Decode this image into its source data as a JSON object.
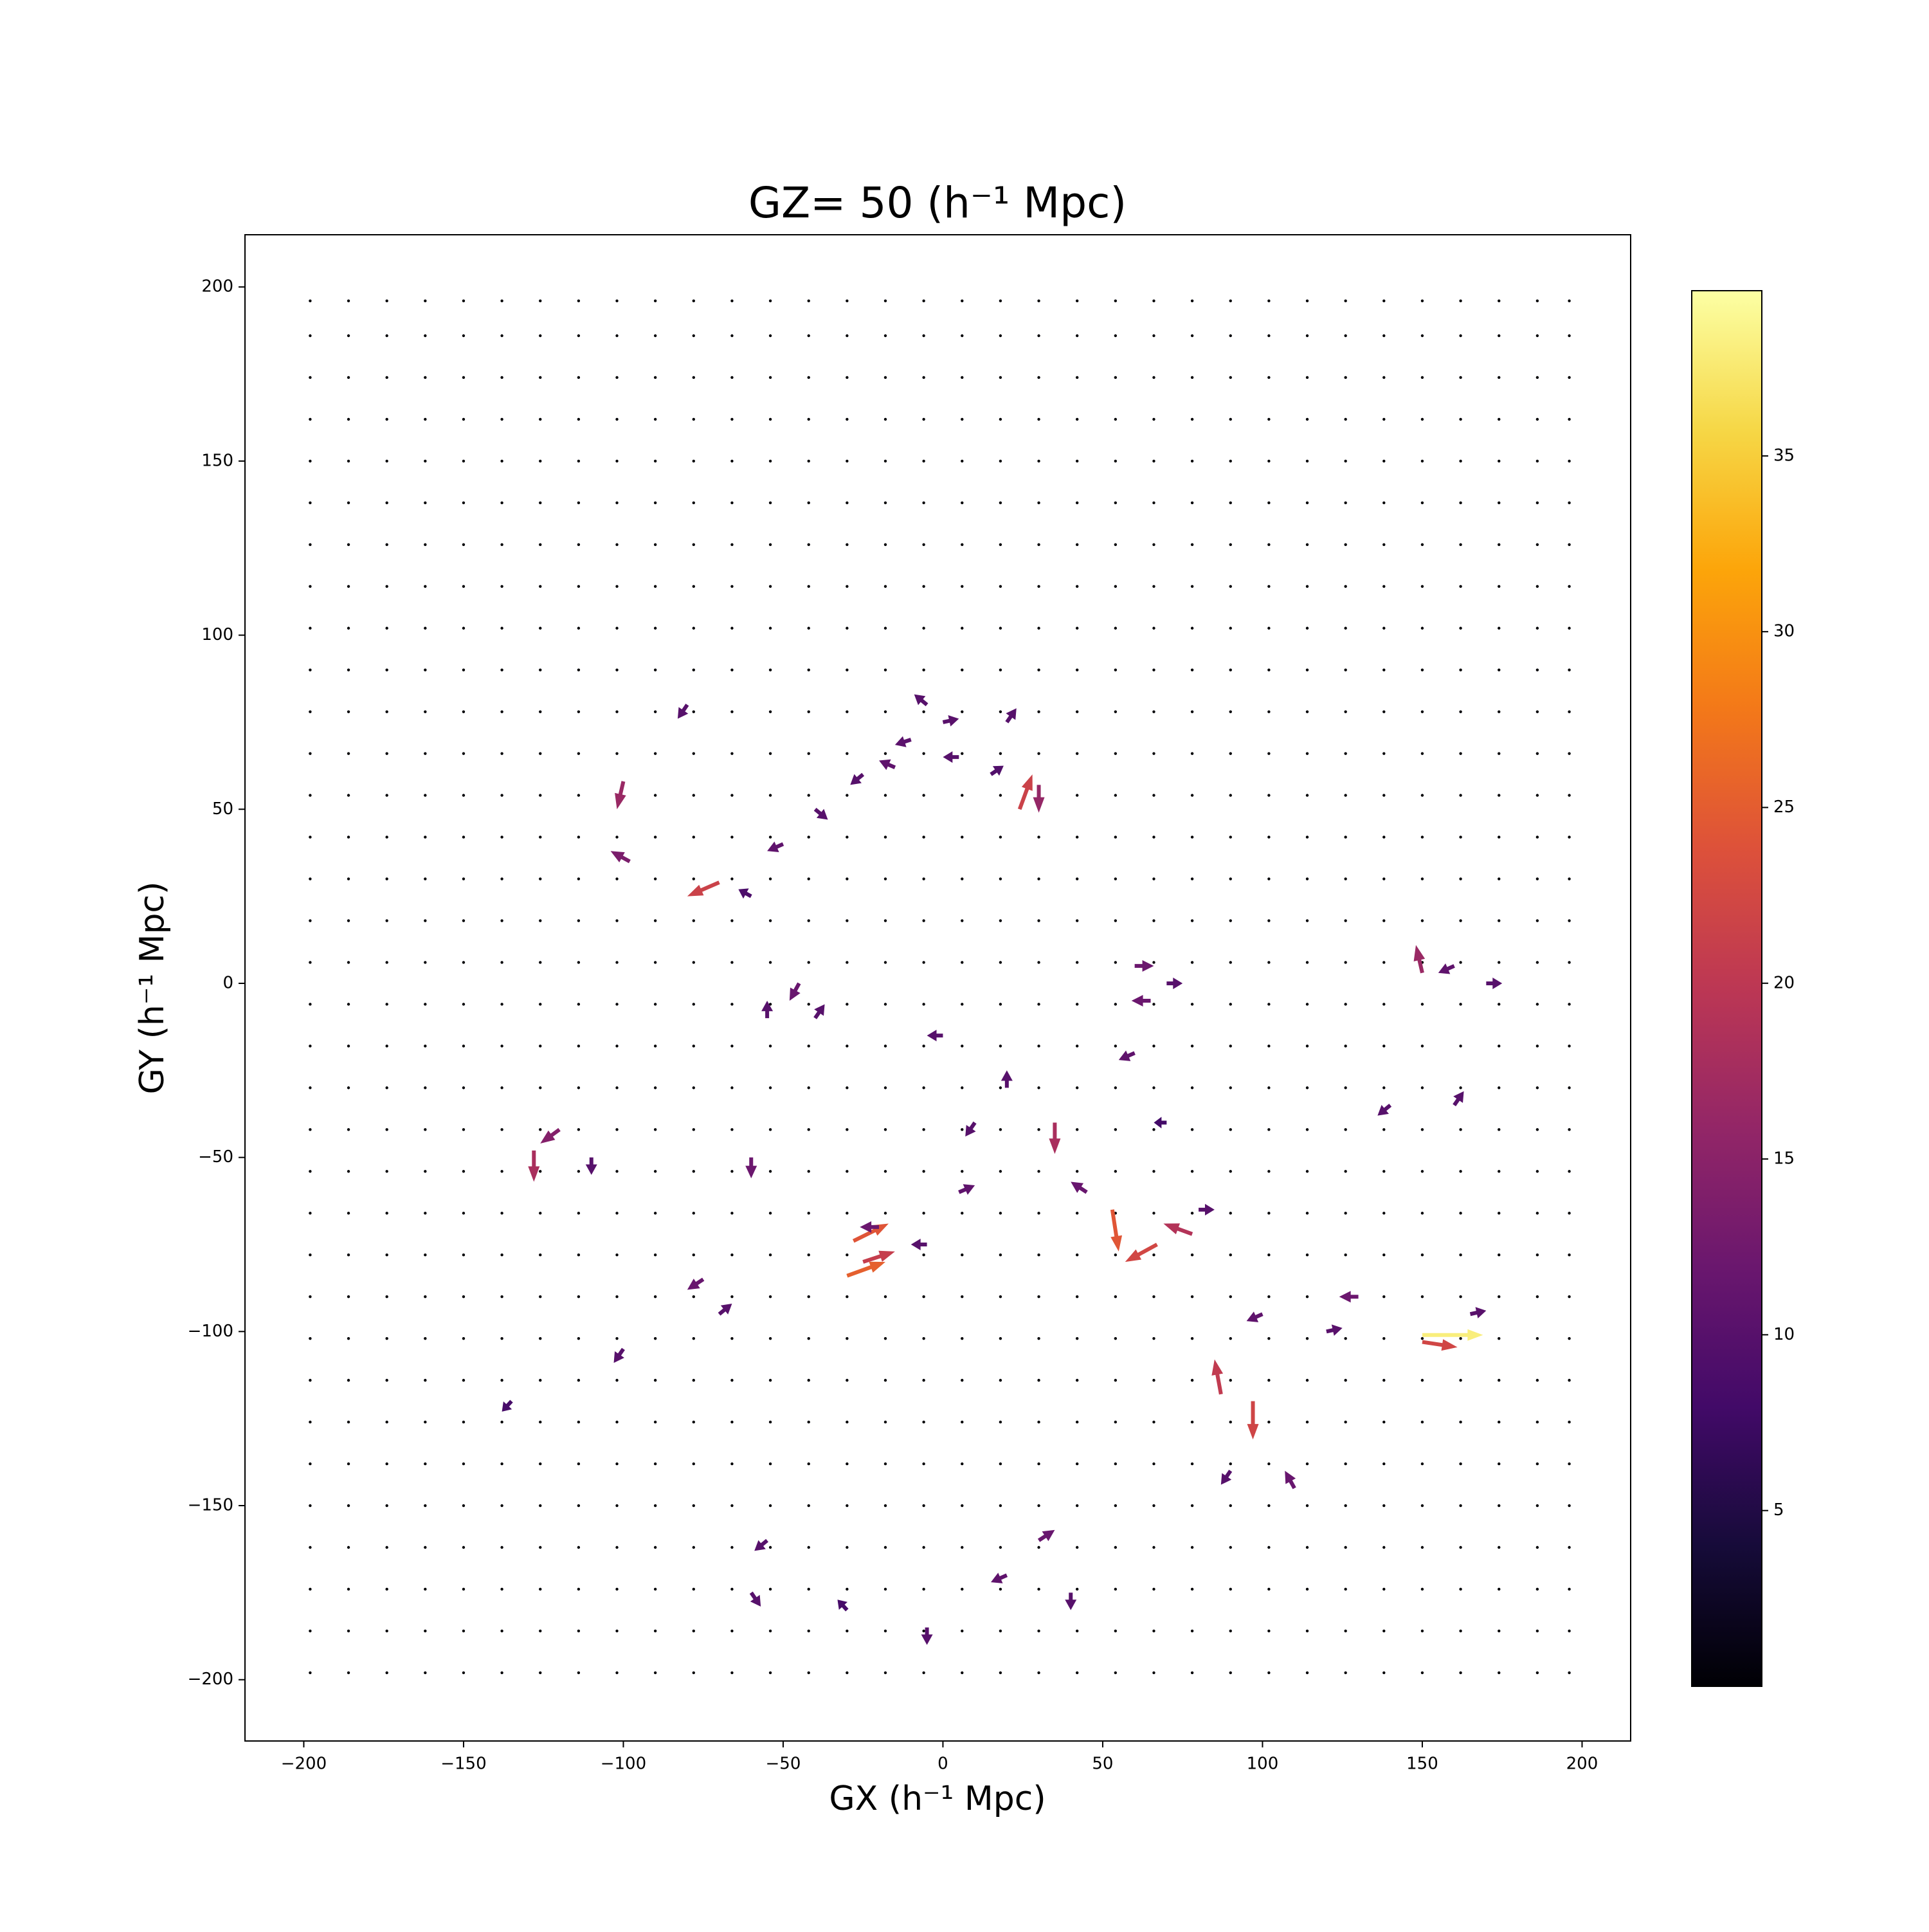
{
  "chart_data": {
    "type": "quiver",
    "title": "GZ= 50 (h⁻¹ Mpc)",
    "x_label": "GX (h⁻¹ Mpc)",
    "y_label": "GY (h⁻¹ Mpc)",
    "colormap": "inferno",
    "xlim": [
      -218.4,
      215.2
    ],
    "ylim": [
      -217.6,
      215
    ],
    "xticks": [
      {
        "value": -200,
        "label": "−200"
      },
      {
        "value": -150,
        "label": "−150"
      },
      {
        "value": -100,
        "label": "−100"
      },
      {
        "value": -50,
        "label": "−50"
      },
      0,
      50,
      100,
      150,
      200
    ],
    "yticks": [
      {
        "value": -200,
        "label": "−200"
      },
      {
        "value": -150,
        "label": "−150"
      },
      {
        "value": -100,
        "label": "−100"
      },
      {
        "value": -50,
        "label": "−50"
      },
      0,
      50,
      100,
      150,
      200
    ],
    "clim": [
      0,
      39.7
    ],
    "cticks": [
      5,
      10,
      15,
      20,
      25,
      30,
      35
    ],
    "grid_x": [
      -198,
      -186,
      -174,
      -162,
      -150,
      -138,
      -126,
      -114,
      -102,
      -90,
      -78,
      -66,
      -54,
      -42,
      -30,
      -18,
      -6,
      6,
      18,
      30,
      42,
      54,
      66,
      78,
      90,
      102,
      114,
      126,
      138,
      150,
      162,
      174,
      186,
      196
    ],
    "grid_y": [
      -198,
      -186,
      -174,
      -162,
      -150,
      -138,
      -126,
      -114,
      -102,
      -90,
      -78,
      -66,
      -54,
      -42,
      -30,
      -18,
      -6,
      6,
      18,
      30,
      42,
      54,
      66,
      78,
      90,
      102,
      114,
      126,
      138,
      150,
      162,
      174,
      186,
      196
    ],
    "x": [
      150,
      150,
      -28,
      -30,
      -25,
      53,
      67,
      78,
      -128,
      -120,
      -100,
      -98,
      -70,
      24,
      30,
      35,
      87,
      97,
      150,
      -80,
      -5,
      0,
      -10,
      5,
      -15,
      -25,
      15,
      20,
      -40,
      -50,
      -60,
      -55,
      -45,
      -40,
      -60,
      0,
      10,
      20,
      5,
      -20,
      -5,
      -75,
      -70,
      -100,
      60,
      65,
      70,
      60,
      45,
      80,
      100,
      120,
      130,
      165,
      170,
      160,
      140,
      160,
      -55,
      -60,
      -30,
      -5,
      30,
      20,
      40,
      90,
      110,
      70,
      -110,
      -135
    ],
    "y": [
      -101,
      -103,
      -74,
      -84,
      -80,
      -65,
      -75,
      -72,
      -48,
      -42,
      58,
      35,
      29,
      50,
      57,
      -40,
      -118,
      -120,
      3,
      80,
      80,
      75,
      70,
      65,
      62,
      60,
      60,
      75,
      50,
      40,
      25,
      -10,
      0,
      -10,
      -50,
      -15,
      -40,
      -30,
      -60,
      -70,
      -75,
      -85,
      -95,
      -105,
      -20,
      -5,
      0,
      5,
      -60,
      -65,
      -95,
      -100,
      -90,
      -95,
      0,
      5,
      -35,
      -35,
      -160,
      -175,
      -180,
      -185,
      -160,
      -170,
      -175,
      -140,
      -145,
      -40,
      -50,
      -120
    ],
    "u": [
      38,
      22,
      22,
      24,
      20,
      4,
      -20,
      -18,
      0,
      -12,
      -4,
      -12,
      -20,
      8,
      0,
      0,
      -4,
      0,
      -4,
      -6,
      -8,
      10,
      -10,
      -10,
      -10,
      -8,
      8,
      6,
      8,
      -10,
      -8,
      0,
      -6,
      6,
      0,
      -10,
      -6,
      0,
      10,
      -12,
      -10,
      -10,
      8,
      -6,
      -10,
      -12,
      10,
      12,
      -10,
      10,
      -10,
      10,
      -12,
      10,
      10,
      -10,
      -8,
      6,
      -8,
      6,
      -6,
      0,
      10,
      -10,
      0,
      -6,
      -6,
      -8,
      0,
      -6
    ],
    "v": [
      0,
      -3,
      10,
      8,
      6,
      -24,
      -10,
      6,
      -18,
      -8,
      -16,
      6,
      -8,
      20,
      -16,
      -18,
      20,
      -22,
      16,
      -8,
      6,
      2,
      -3,
      0,
      4,
      -6,
      5,
      8,
      -6,
      -4,
      4,
      10,
      -10,
      8,
      -12,
      0,
      -8,
      10,
      4,
      0,
      0,
      -6,
      6,
      -8,
      -4,
      0,
      0,
      0,
      6,
      0,
      -4,
      2,
      0,
      2,
      0,
      -4,
      -6,
      8,
      -6,
      -8,
      6,
      -10,
      6,
      -4,
      -10,
      -8,
      10,
      0,
      -10,
      -6
    ]
  }
}
